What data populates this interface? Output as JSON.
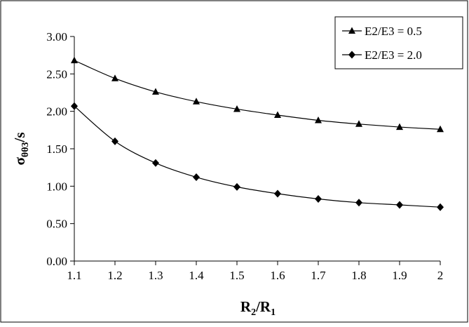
{
  "chart_data": {
    "type": "line",
    "x": [
      1.1,
      1.2,
      1.3,
      1.4,
      1.5,
      1.6,
      1.7,
      1.8,
      1.9,
      2.0
    ],
    "x_tick_labels": [
      "1.1",
      "1.2",
      "1.3",
      "1.4",
      "1.5",
      "1.6",
      "1.7",
      "1.8",
      "1.9",
      "2"
    ],
    "y_tick_labels": [
      "0.00",
      "0.50",
      "1.00",
      "1.50",
      "2.00",
      "2.50",
      "3.00"
    ],
    "ylim": [
      0,
      3
    ],
    "xlabel": {
      "main": "R",
      "sub1": "2",
      "mid": "/R",
      "sub2": "1"
    },
    "ylabel": {
      "main": "σ",
      "sub": "θθ3",
      "tail": "/s"
    },
    "legend_position": "top-right",
    "grid": false,
    "series": [
      {
        "name": "E2/E3 = 0.5",
        "marker": "triangle",
        "values": [
          2.68,
          2.44,
          2.26,
          2.13,
          2.03,
          1.95,
          1.88,
          1.83,
          1.79,
          1.76
        ]
      },
      {
        "name": "E2/E3 = 2.0",
        "marker": "diamond",
        "values": [
          2.07,
          1.6,
          1.31,
          1.12,
          0.99,
          0.9,
          0.83,
          0.78,
          0.75,
          0.72
        ]
      }
    ]
  }
}
